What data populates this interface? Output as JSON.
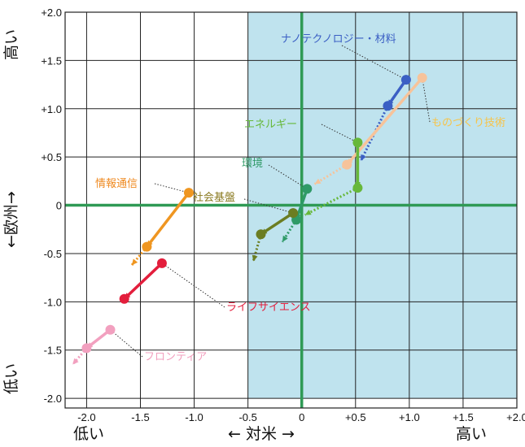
{
  "chart_data": {
    "type": "scatter",
    "title": "",
    "x_axis": {
      "label": "← 対米 →",
      "low": "低い",
      "high": "高い",
      "range": [
        -2.2,
        2.0
      ],
      "ticks": [
        "-2.0",
        "-1.5",
        "-1.0",
        "-0.5",
        "0",
        "+0.5",
        "+1.0",
        "+1.5",
        "+2.0"
      ]
    },
    "y_axis": {
      "label": "←欧州→",
      "low": "低い",
      "high": "高い",
      "range": [
        -2.1,
        2.0
      ],
      "ticks": [
        "+2.0",
        "+1.5",
        "+1.0",
        "+0.5",
        "0",
        "-0.5",
        "-1.0",
        "-1.5",
        "-2.0"
      ]
    },
    "grid": true,
    "highlight_quadrant": {
      "x": [
        -0.5,
        2.0
      ],
      "y": [
        -2.0,
        2.0
      ],
      "color": "#bfe3ee"
    },
    "series": [
      {
        "name": "ナノテクノロジー・材料",
        "color": "#3b5fc4",
        "points": [
          [
            0.97,
            1.3
          ],
          [
            0.8,
            1.03
          ],
          [
            0.55,
            0.46
          ]
        ]
      },
      {
        "name": "ものづくり技術",
        "color": "#f7c39a",
        "points": [
          [
            1.12,
            1.32
          ],
          [
            0.42,
            0.42
          ],
          [
            0.12,
            0.22
          ]
        ]
      },
      {
        "name": "エネルギー",
        "color": "#67b83a",
        "points": [
          [
            0.52,
            0.65
          ],
          [
            0.52,
            0.18
          ],
          [
            0.03,
            -0.1
          ]
        ]
      },
      {
        "name": "環境",
        "color": "#2f9a67",
        "points": [
          [
            0.05,
            0.17
          ],
          [
            -0.05,
            -0.15
          ],
          [
            -0.18,
            -0.38
          ]
        ]
      },
      {
        "name": "社会基盤",
        "color": "#6b7d22",
        "points": [
          [
            -0.08,
            -0.08
          ],
          [
            -0.38,
            -0.3
          ],
          [
            -0.45,
            -0.58
          ]
        ]
      },
      {
        "name": "情報通信",
        "color": "#ef9621",
        "points": [
          [
            -1.05,
            0.13
          ],
          [
            -1.44,
            -0.43
          ],
          [
            -1.58,
            -0.62
          ]
        ]
      },
      {
        "name": "ライフサイエンス",
        "color": "#e31e3c",
        "points": [
          [
            -1.3,
            -0.6
          ],
          [
            -1.65,
            -0.97
          ],
          [
            -1.68,
            -0.95
          ]
        ]
      },
      {
        "name": "フロンティア",
        "color": "#f2a0bf",
        "points": [
          [
            -1.78,
            -1.29
          ],
          [
            -2.0,
            -1.48
          ],
          [
            -2.13,
            -1.65
          ]
        ]
      }
    ],
    "labels": [
      {
        "text": "ナノテクノロジー・材料",
        "color": "#3b5fc4"
      },
      {
        "text": "ものづくり技術",
        "color": "#f7c44a"
      },
      {
        "text": "エネルギー",
        "color": "#67b83a"
      },
      {
        "text": "環境",
        "color": "#2f9a67"
      },
      {
        "text": "社会基盤",
        "color": "#8a7a20"
      },
      {
        "text": "情報通信",
        "color": "#ef8a21"
      },
      {
        "text": "ライフサイエンス",
        "color": "#e31e3c"
      },
      {
        "text": "フロンティア",
        "color": "#f2a0bf"
      }
    ]
  }
}
